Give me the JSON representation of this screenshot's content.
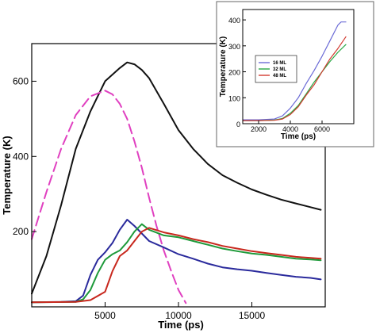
{
  "chart_data": [
    {
      "type": "line",
      "title": "",
      "xlabel": "Time (ps)",
      "ylabel": "Temperature (K)",
      "xlim": [
        0,
        20000
      ],
      "ylim": [
        0,
        700
      ],
      "xticks": [
        5000,
        10000,
        15000
      ],
      "yticks": [
        200,
        400,
        600
      ],
      "grid": false,
      "series": [
        {
          "color": "#111111",
          "dash": false,
          "points": [
            [
              0,
              35
            ],
            [
              1000,
              135
            ],
            [
              2000,
              270
            ],
            [
              3000,
              420
            ],
            [
              4000,
              520
            ],
            [
              5000,
              600
            ],
            [
              6000,
              635
            ],
            [
              6500,
              650
            ],
            [
              7000,
              645
            ],
            [
              7500,
              630
            ],
            [
              8000,
              608
            ],
            [
              9000,
              540
            ],
            [
              10000,
              470
            ],
            [
              11000,
              420
            ],
            [
              12000,
              380
            ],
            [
              13000,
              350
            ],
            [
              14000,
              330
            ],
            [
              15000,
              312
            ],
            [
              16000,
              298
            ],
            [
              17000,
              285
            ],
            [
              18000,
              275
            ],
            [
              19000,
              265
            ],
            [
              19700,
              258
            ]
          ]
        },
        {
          "color": "#e040c0",
          "dash": true,
          "points": [
            [
              0,
              180
            ],
            [
              1000,
              305
            ],
            [
              2000,
              420
            ],
            [
              3000,
              510
            ],
            [
              4000,
              560
            ],
            [
              5000,
              575
            ],
            [
              5500,
              565
            ],
            [
              6000,
              540
            ],
            [
              6500,
              500
            ],
            [
              7000,
              440
            ],
            [
              7500,
              370
            ],
            [
              8000,
              290
            ],
            [
              8500,
              215
            ],
            [
              9000,
              150
            ],
            [
              9500,
              95
            ],
            [
              10000,
              45
            ],
            [
              10500,
              10
            ]
          ]
        },
        {
          "color": "#2a2a9c",
          "dash": false,
          "points": [
            [
              0,
              12
            ],
            [
              2000,
              13
            ],
            [
              3000,
              15
            ],
            [
              3500,
              30
            ],
            [
              4000,
              85
            ],
            [
              4500,
              125
            ],
            [
              5000,
              145
            ],
            [
              5500,
              170
            ],
            [
              6000,
              205
            ],
            [
              6500,
              232
            ],
            [
              7000,
              215
            ],
            [
              7500,
              195
            ],
            [
              8000,
              175
            ],
            [
              9000,
              158
            ],
            [
              10000,
              140
            ],
            [
              11000,
              128
            ],
            [
              12000,
              115
            ],
            [
              13000,
              105
            ],
            [
              14000,
              100
            ],
            [
              15000,
              96
            ],
            [
              16000,
              90
            ],
            [
              17000,
              85
            ],
            [
              18000,
              80
            ],
            [
              19000,
              77
            ],
            [
              19700,
              73
            ]
          ]
        },
        {
          "color": "#1e9a3a",
          "dash": false,
          "points": [
            [
              0,
              12
            ],
            [
              3000,
              13
            ],
            [
              3500,
              20
            ],
            [
              4000,
              45
            ],
            [
              4500,
              90
            ],
            [
              5000,
              125
            ],
            [
              5500,
              140
            ],
            [
              6000,
              150
            ],
            [
              6500,
              172
            ],
            [
              7000,
              200
            ],
            [
              7500,
              220
            ],
            [
              8000,
              205
            ],
            [
              9000,
              190
            ],
            [
              10000,
              185
            ],
            [
              11000,
              175
            ],
            [
              12000,
              165
            ],
            [
              13000,
              155
            ],
            [
              14000,
              148
            ],
            [
              15000,
              142
            ],
            [
              16000,
              138
            ],
            [
              17000,
              133
            ],
            [
              18000,
              128
            ],
            [
              19000,
              126
            ],
            [
              19700,
              124
            ]
          ]
        },
        {
          "color": "#c8281e",
          "dash": false,
          "points": [
            [
              0,
              12
            ],
            [
              3000,
              13
            ],
            [
              4000,
              18
            ],
            [
              5000,
              40
            ],
            [
              5500,
              95
            ],
            [
              6000,
              135
            ],
            [
              6500,
              150
            ],
            [
              7000,
              175
            ],
            [
              7500,
              200
            ],
            [
              8000,
              210
            ],
            [
              9000,
              198
            ],
            [
              10000,
              190
            ],
            [
              11000,
              180
            ],
            [
              12000,
              172
            ],
            [
              13000,
              162
            ],
            [
              14000,
              155
            ],
            [
              15000,
              148
            ],
            [
              16000,
              143
            ],
            [
              17000,
              138
            ],
            [
              18000,
              133
            ],
            [
              19000,
              130
            ],
            [
              19700,
              128
            ]
          ]
        }
      ]
    },
    {
      "type": "line",
      "title": "",
      "xlabel": "Time (ps)",
      "ylabel": "Temperature (K)",
      "xlim": [
        1000,
        8000
      ],
      "ylim": [
        0,
        440
      ],
      "xticks": [
        2000,
        4000,
        6000
      ],
      "yticks": [
        0,
        100,
        200,
        300,
        400
      ],
      "legend_position": "left-middle",
      "series": [
        {
          "name": "16 ML",
          "color": "#6b6bd6",
          "points": [
            [
              1000,
              15
            ],
            [
              2000,
              15
            ],
            [
              3000,
              18
            ],
            [
              3500,
              30
            ],
            [
              4000,
              60
            ],
            [
              4500,
              100
            ],
            [
              5000,
              155
            ],
            [
              5500,
              205
            ],
            [
              6000,
              260
            ],
            [
              6500,
              320
            ],
            [
              7000,
              380
            ],
            [
              7200,
              392
            ],
            [
              7500,
              392
            ]
          ]
        },
        {
          "name": "32 ML",
          "color": "#27a843",
          "points": [
            [
              1000,
              12
            ],
            [
              2000,
              12
            ],
            [
              3000,
              14
            ],
            [
              3500,
              20
            ],
            [
              4000,
              40
            ],
            [
              4500,
              70
            ],
            [
              5000,
              115
            ],
            [
              5500,
              160
            ],
            [
              6000,
              200
            ],
            [
              6500,
              240
            ],
            [
              7000,
              275
            ],
            [
              7500,
              305
            ]
          ]
        },
        {
          "name": "48 ML",
          "color": "#d23a30",
          "points": [
            [
              1000,
              12
            ],
            [
              2000,
              12
            ],
            [
              3000,
              13
            ],
            [
              3500,
              18
            ],
            [
              4000,
              35
            ],
            [
              4500,
              65
            ],
            [
              5000,
              110
            ],
            [
              5500,
              150
            ],
            [
              6000,
              200
            ],
            [
              6500,
              250
            ],
            [
              7000,
              290
            ],
            [
              7500,
              335
            ]
          ]
        }
      ]
    }
  ]
}
